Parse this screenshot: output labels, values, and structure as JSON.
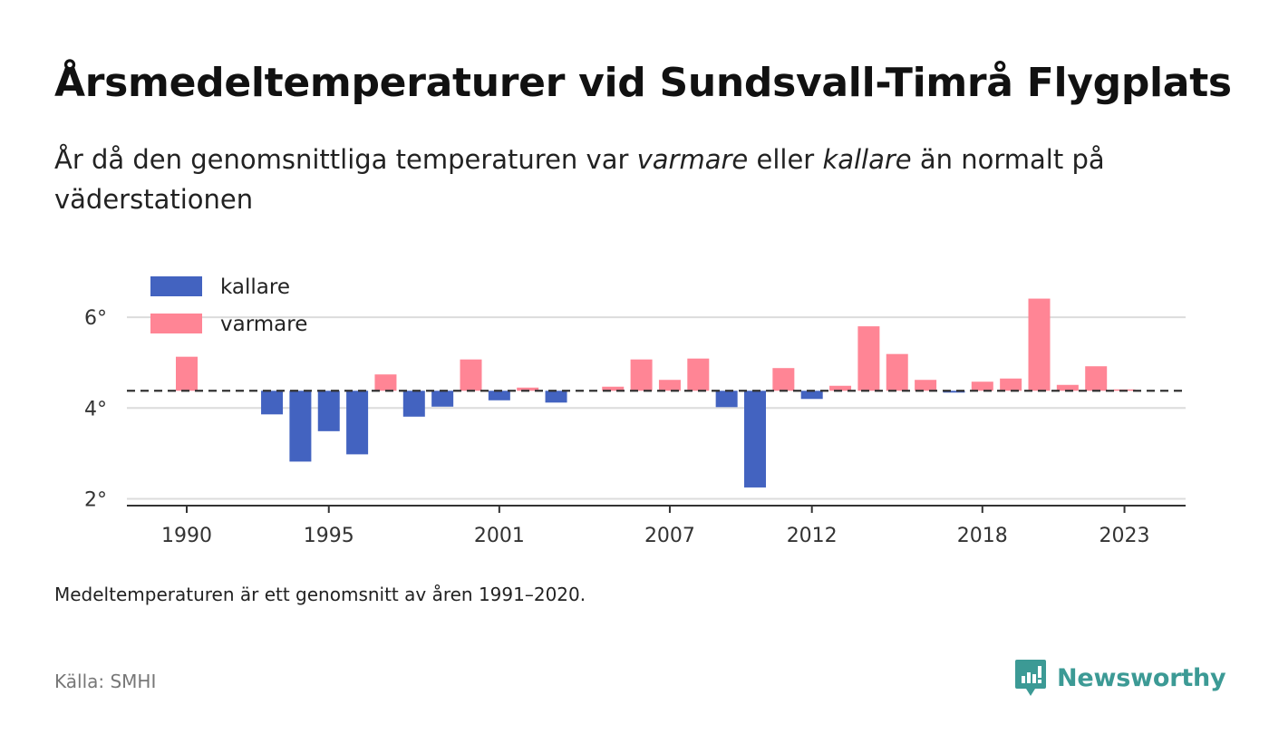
{
  "title": "Årsmedeltemperaturer vid Sundsvall-Timrå Flygplats",
  "subtitle": {
    "part1": "År då den genomsnittliga temperaturen var ",
    "warmer": "varmare",
    "part2": " eller ",
    "colder": "kallare",
    "part3": " än normalt på väderstationen"
  },
  "note": "Medeltemperaturen är ett genomsnitt av åren 1991–2020.",
  "source": "Källa: SMHI",
  "brand": {
    "name": "Newsworthy",
    "icon": "newsworthy-logo-icon"
  },
  "colors": {
    "colder": "#4363c0",
    "warmer": "#ff8595",
    "grid": "#dcdcdc",
    "axis": "#333333",
    "brand": "#3c9a95"
  },
  "chart_data": {
    "type": "bar",
    "baseline": 4.38,
    "baseline_style": "dashed",
    "ylim": [
      1.85,
      7.0
    ],
    "yticks": [
      {
        "value": 2,
        "label": "2°"
      },
      {
        "value": 4,
        "label": "4°"
      },
      {
        "value": 6,
        "label": "6°"
      }
    ],
    "xticks": [
      {
        "year": 1990,
        "label": "1990"
      },
      {
        "year": 1995,
        "label": "1995"
      },
      {
        "year": 2001,
        "label": "2001"
      },
      {
        "year": 2007,
        "label": "2007"
      },
      {
        "year": 2012,
        "label": "2012"
      },
      {
        "year": 2018,
        "label": "2018"
      },
      {
        "year": 2023,
        "label": "2023"
      }
    ],
    "legend": {
      "position": "top-left",
      "items": [
        {
          "key": "colder",
          "label": "kallare"
        },
        {
          "key": "warmer",
          "label": "varmare"
        }
      ]
    },
    "grid": true,
    "years": [
      1990,
      1991,
      1992,
      1993,
      1994,
      1995,
      1996,
      1997,
      1998,
      1999,
      2000,
      2001,
      2002,
      2003,
      2004,
      2005,
      2006,
      2007,
      2008,
      2009,
      2010,
      2011,
      2012,
      2013,
      2014,
      2015,
      2016,
      2017,
      2018,
      2019,
      2020,
      2021,
      2022,
      2023
    ],
    "values": [
      5.13,
      null,
      null,
      3.86,
      2.82,
      3.49,
      2.98,
      4.74,
      3.81,
      4.03,
      5.07,
      4.17,
      4.45,
      4.12,
      null,
      4.47,
      5.07,
      4.62,
      5.09,
      4.02,
      2.25,
      4.88,
      4.2,
      4.49,
      5.8,
      5.19,
      4.62,
      4.34,
      4.58,
      4.65,
      6.41,
      4.51,
      4.92,
      4.41
    ]
  }
}
